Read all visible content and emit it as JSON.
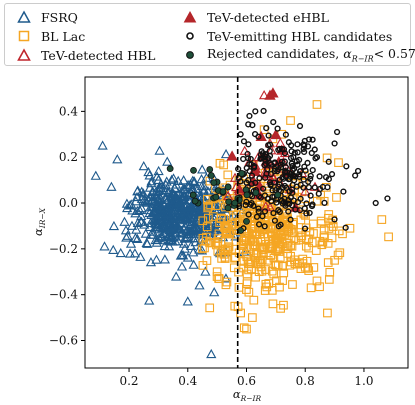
{
  "chart_data": {
    "type": "scatter",
    "xlabel": "α",
    "xlabel_sub": "R−IR",
    "ylabel": "α",
    "ylabel_sub": "IR−X",
    "xlim": [
      0.05,
      1.15
    ],
    "ylim": [
      -0.72,
      0.55
    ],
    "xticks": [
      0.2,
      0.4,
      0.6,
      0.8,
      1.0
    ],
    "xtick_labels": [
      "0.2",
      "0.4",
      "0.6",
      "0.8",
      "1.0"
    ],
    "yticks": [
      -0.6,
      -0.4,
      -0.2,
      0.0,
      0.2,
      0.4
    ],
    "ytick_labels": [
      "−0.6",
      "−0.4",
      "−0.2",
      "0.0",
      "0.2",
      "0.4"
    ],
    "grid": false,
    "legend_placement": "top",
    "vline": {
      "x": 0.57,
      "style": "dashed",
      "color": "#000000"
    },
    "series": [
      {
        "name": "FSRQ",
        "marker": "triangle-open",
        "color": "#1f5a8c",
        "legend_col": 0,
        "count": 520,
        "center": [
          0.38,
          -0.05
        ],
        "spread": [
          0.09,
          0.08
        ],
        "x": [
          0.11,
          0.16,
          0.14,
          0.25,
          0.48,
          0.4,
          0.44,
          0.49,
          0.53,
          0.42,
          0.22,
          0.21,
          0.27,
          0.33,
          0.46,
          0.28,
          0.3,
          0.36,
          0.39,
          0.52
        ],
        "y": [
          0.25,
          0.19,
          0.07,
          0.16,
          -0.66,
          -0.43,
          -0.36,
          -0.39,
          -0.33,
          -0.27,
          -0.22,
          -0.1,
          0.12,
          0.18,
          -0.3,
          0.05,
          0.1,
          0.08,
          -0.2,
          -0.15
        ]
      },
      {
        "name": "BL Lac",
        "marker": "square-open",
        "color": "#f5a623",
        "legend_col": 0,
        "count": 450,
        "center": [
          0.66,
          -0.12
        ],
        "spread": [
          0.11,
          0.13
        ],
        "x": [
          0.58,
          0.62,
          0.69,
          0.84,
          0.84,
          0.78,
          0.74,
          0.82,
          0.86,
          0.9,
          0.66,
          0.69,
          0.72,
          0.75,
          0.6,
          0.56,
          0.5,
          0.45,
          0.88,
          0.8
        ],
        "y": [
          -0.48,
          -0.5,
          -0.44,
          0.43,
          -0.34,
          -0.26,
          -0.22,
          -0.37,
          -0.17,
          -0.25,
          0.32,
          0.28,
          0.3,
          0.36,
          -0.55,
          -0.45,
          -0.3,
          -0.2,
          -0.05,
          -0.28
        ]
      },
      {
        "name": "TeV-detected HBL",
        "marker": "triangle-open",
        "color": "#c0272d",
        "legend_col": 0,
        "count": 25,
        "center": [
          0.7,
          0.12
        ],
        "spread": [
          0.07,
          0.09
        ],
        "x": [
          0.66,
          0.68,
          0.64,
          0.72,
          0.75,
          0.8
        ],
        "y": [
          0.47,
          0.26,
          0.2,
          0.15,
          0.13,
          0.05
        ]
      },
      {
        "name": "TeV-detected eHBL",
        "marker": "triangle-filled",
        "color": "#b5262a",
        "legend_col": 1,
        "count": 14,
        "center": [
          0.69,
          0.14
        ],
        "spread": [
          0.05,
          0.07
        ],
        "x": [
          0.68,
          0.69,
          0.65,
          0.72,
          0.71,
          0.63
        ],
        "y": [
          0.47,
          0.48,
          0.29,
          0.23,
          0.18,
          0.15
        ]
      },
      {
        "name": "TeV-emitting HBL candidates",
        "marker": "circle-open",
        "color": "#111111",
        "legend_col": 1,
        "count": 230,
        "center": [
          0.72,
          0.1
        ],
        "spread": [
          0.08,
          0.1
        ],
        "x": [
          1.08,
          1.04,
          0.98,
          0.97,
          0.94,
          0.93,
          0.9,
          0.88,
          0.86,
          0.84,
          0.62,
          0.63,
          0.61,
          0.58
        ],
        "y": [
          0.02,
          0.0,
          0.14,
          0.12,
          0.16,
          0.05,
          0.26,
          0.18,
          0.07,
          0.2,
          0.34,
          0.4,
          0.38,
          0.3
        ]
      },
      {
        "name": "Rejected candidates,",
        "marker": "circle-filled",
        "color": "#1f4f3a",
        "legend_col": 1,
        "count": 22,
        "center": [
          0.55,
          0.05
        ],
        "spread": [
          0.07,
          0.07
        ],
        "x": [
          0.34,
          0.48,
          0.52,
          0.56,
          0.58,
          0.6
        ],
        "y": [
          0.15,
          0.12,
          0.05,
          0.0,
          -0.12,
          -0.08
        ]
      }
    ],
    "legend_extra": {
      "math": "α",
      "math_sub": "R−IR",
      "math_rest": "< 0.57"
    }
  }
}
